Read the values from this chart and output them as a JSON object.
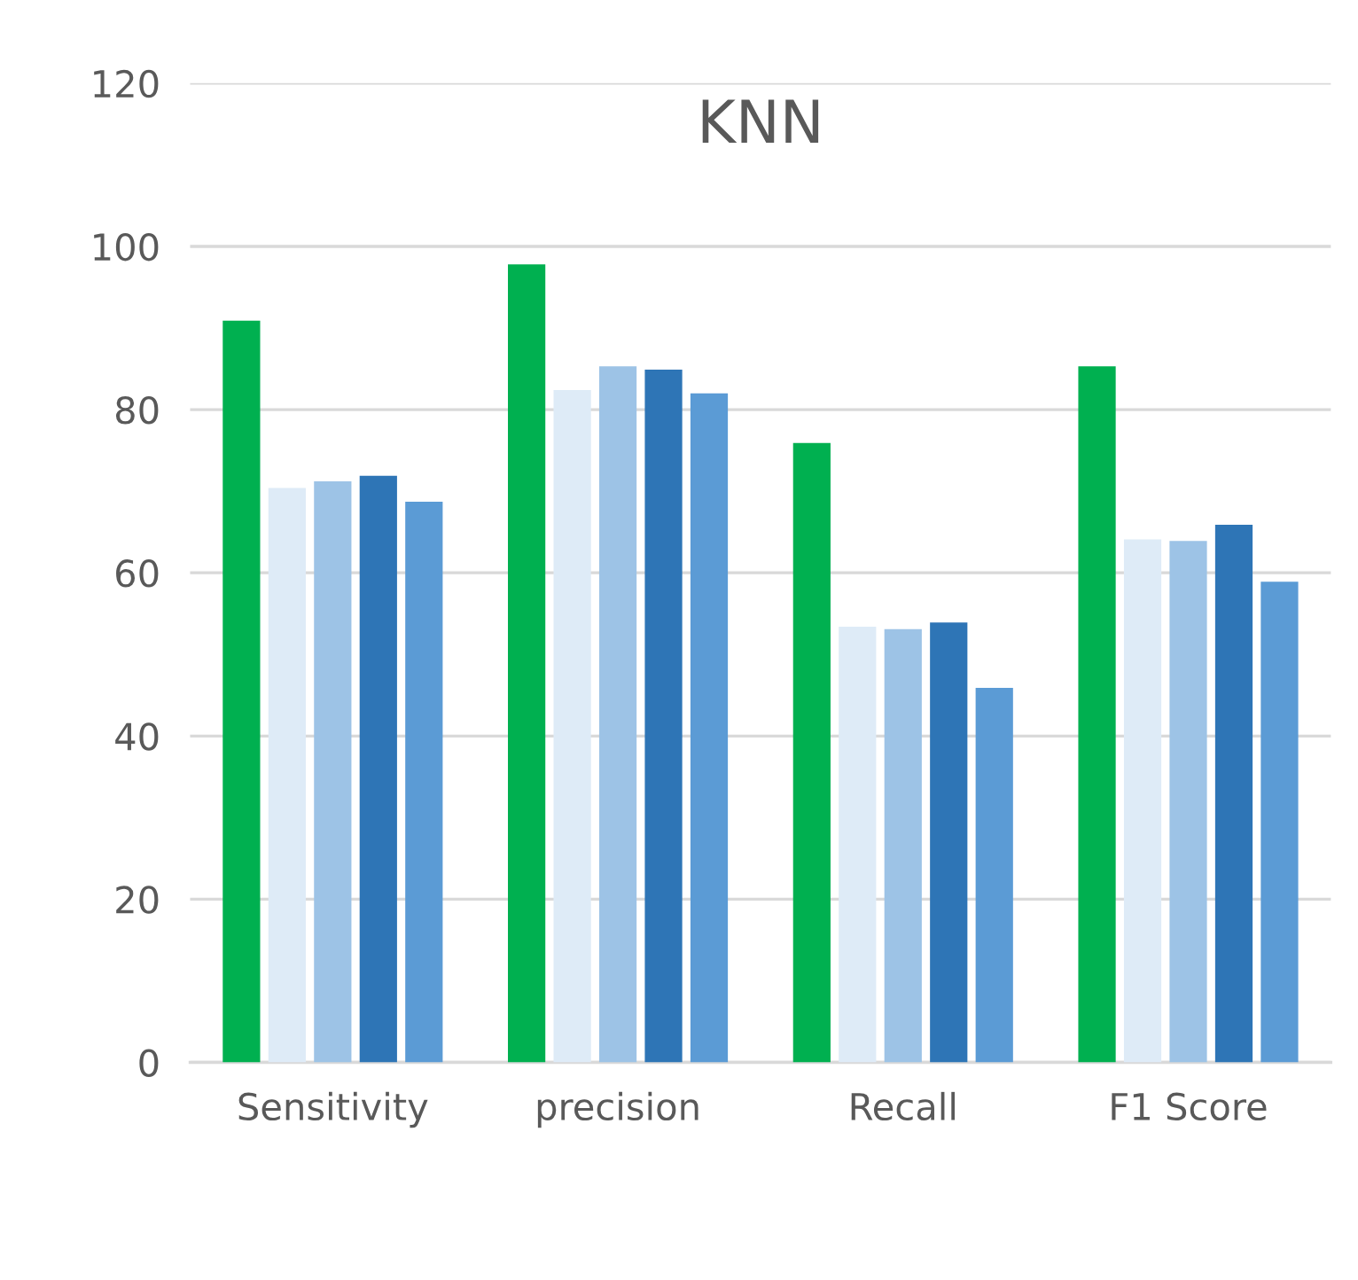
{
  "chart_data": {
    "type": "bar",
    "title": "KNN",
    "categories": [
      "Sensitivity",
      "precision",
      "Recall",
      "F1 Score"
    ],
    "series": [
      {
        "color": "#00b050",
        "values": [
          90.9,
          97.8,
          75.9,
          85.3
        ]
      },
      {
        "color": "#deebf7",
        "values": [
          70.4,
          82.4,
          53.4,
          64.1
        ]
      },
      {
        "color": "#9dc3e6",
        "values": [
          71.2,
          85.3,
          53.1,
          63.9
        ]
      },
      {
        "color": "#2e75b6",
        "values": [
          71.9,
          84.9,
          53.9,
          65.9
        ]
      },
      {
        "color": "#5b9bd5",
        "values": [
          68.7,
          82.0,
          45.9,
          58.9
        ]
      }
    ],
    "ylim": [
      0,
      120
    ],
    "yticks": [
      0,
      20,
      40,
      60,
      80,
      100,
      120
    ],
    "grid": "y"
  }
}
